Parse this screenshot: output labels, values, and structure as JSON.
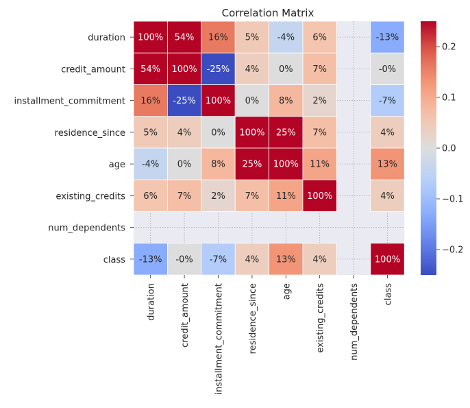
{
  "chart_data": {
    "type": "heatmap",
    "title": "Correlation Matrix",
    "xlabel": "",
    "ylabel": "",
    "variables": [
      "duration",
      "credit_amount",
      "installment_commitment",
      "residence_since",
      "age",
      "existing_credits",
      "num_dependents",
      "class"
    ],
    "values": [
      [
        1.0,
        0.54,
        0.16,
        0.05,
        -0.04,
        0.06,
        null,
        -0.13
      ],
      [
        0.54,
        1.0,
        -0.25,
        0.04,
        0.0,
        0.07,
        null,
        -0.0
      ],
      [
        0.16,
        -0.25,
        1.0,
        0.0,
        0.08,
        0.02,
        null,
        -0.07
      ],
      [
        0.05,
        0.04,
        0.0,
        1.0,
        0.25,
        0.07,
        null,
        0.04
      ],
      [
        -0.04,
        0.0,
        0.08,
        0.25,
        1.0,
        0.11,
        null,
        0.13
      ],
      [
        0.06,
        0.07,
        0.02,
        0.07,
        0.11,
        1.0,
        null,
        0.04
      ],
      [
        null,
        null,
        null,
        null,
        null,
        null,
        null,
        null
      ],
      [
        -0.13,
        -0.0,
        -0.07,
        0.04,
        0.13,
        0.04,
        null,
        1.0
      ]
    ],
    "labels": [
      [
        "100%",
        "54%",
        "16%",
        "5%",
        "-4%",
        "6%",
        "",
        "-13%"
      ],
      [
        "54%",
        "100%",
        "-25%",
        "4%",
        "0%",
        "7%",
        "",
        "-0%"
      ],
      [
        "16%",
        "-25%",
        "100%",
        "0%",
        "8%",
        "2%",
        "",
        "-7%"
      ],
      [
        "5%",
        "4%",
        "0%",
        "100%",
        "25%",
        "7%",
        "",
        "4%"
      ],
      [
        "-4%",
        "0%",
        "8%",
        "25%",
        "100%",
        "11%",
        "",
        "13%"
      ],
      [
        "6%",
        "7%",
        "2%",
        "7%",
        "11%",
        "100%",
        "",
        "4%"
      ],
      [
        "",
        "",
        "",
        "",
        "",
        "",
        "",
        ""
      ],
      [
        "-13%",
        "-0%",
        "-7%",
        "4%",
        "13%",
        "4%",
        "",
        "100%"
      ]
    ],
    "colormap": "coolwarm",
    "vmin": -0.25,
    "vmax": 0.25,
    "colorbar_ticks": [
      -0.2,
      -0.1,
      0.0,
      0.1,
      0.2
    ],
    "colorbar_tick_labels": [
      "−0.2",
      "−0.1",
      "0.0",
      "0.1",
      "0.2"
    ],
    "missing_color": "#eaeaf2"
  }
}
